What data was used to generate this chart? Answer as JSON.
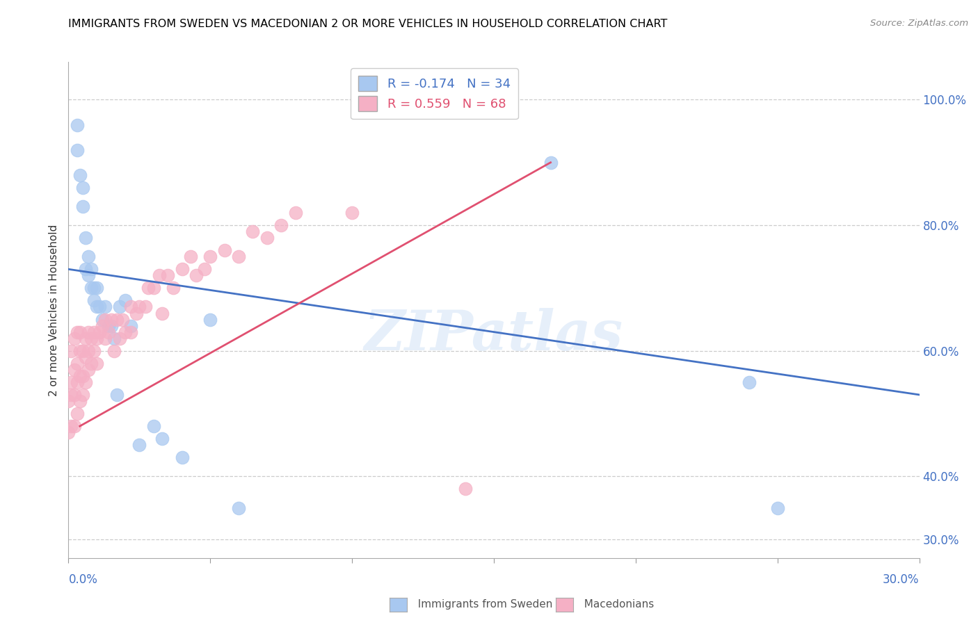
{
  "title": "IMMIGRANTS FROM SWEDEN VS MACEDONIAN 2 OR MORE VEHICLES IN HOUSEHOLD CORRELATION CHART",
  "source": "Source: ZipAtlas.com",
  "ylabel": "2 or more Vehicles in Household",
  "yaxis_labels": [
    "100.0%",
    "80.0%",
    "60.0%",
    "40.0%",
    "30.0%"
  ],
  "yaxis_values": [
    1.0,
    0.8,
    0.6,
    0.4,
    0.3
  ],
  "xlim": [
    0.0,
    0.3
  ],
  "ylim": [
    0.27,
    1.06
  ],
  "legend_sweden": "R = -0.174   N = 34",
  "legend_macedonian": "R = 0.559   N = 68",
  "color_sweden": "#a8c8f0",
  "color_macedonian": "#f5b0c5",
  "line_color_sweden": "#4472c4",
  "line_color_macedonian": "#e05070",
  "watermark": "ZIPatlas",
  "sweden_x": [
    0.003,
    0.003,
    0.004,
    0.005,
    0.005,
    0.006,
    0.006,
    0.007,
    0.007,
    0.008,
    0.008,
    0.009,
    0.009,
    0.01,
    0.01,
    0.011,
    0.012,
    0.013,
    0.014,
    0.015,
    0.016,
    0.017,
    0.018,
    0.02,
    0.022,
    0.025,
    0.03,
    0.033,
    0.04,
    0.05,
    0.06,
    0.17,
    0.24,
    0.25
  ],
  "sweden_y": [
    0.92,
    0.96,
    0.88,
    0.83,
    0.86,
    0.73,
    0.78,
    0.72,
    0.75,
    0.7,
    0.73,
    0.7,
    0.68,
    0.7,
    0.67,
    0.67,
    0.65,
    0.67,
    0.64,
    0.64,
    0.62,
    0.53,
    0.67,
    0.68,
    0.64,
    0.45,
    0.48,
    0.46,
    0.43,
    0.65,
    0.35,
    0.9,
    0.55,
    0.35
  ],
  "macedonian_x": [
    0.0,
    0.0,
    0.001,
    0.001,
    0.001,
    0.001,
    0.002,
    0.002,
    0.002,
    0.002,
    0.003,
    0.003,
    0.003,
    0.003,
    0.004,
    0.004,
    0.004,
    0.004,
    0.005,
    0.005,
    0.005,
    0.006,
    0.006,
    0.006,
    0.007,
    0.007,
    0.007,
    0.008,
    0.008,
    0.009,
    0.009,
    0.01,
    0.01,
    0.011,
    0.012,
    0.013,
    0.013,
    0.014,
    0.015,
    0.016,
    0.017,
    0.018,
    0.019,
    0.02,
    0.022,
    0.022,
    0.024,
    0.025,
    0.027,
    0.028,
    0.03,
    0.032,
    0.033,
    0.035,
    0.037,
    0.04,
    0.043,
    0.045,
    0.048,
    0.05,
    0.055,
    0.06,
    0.065,
    0.07,
    0.075,
    0.08,
    0.1,
    0.14
  ],
  "macedonian_y": [
    0.47,
    0.52,
    0.48,
    0.53,
    0.55,
    0.6,
    0.48,
    0.53,
    0.57,
    0.62,
    0.5,
    0.55,
    0.58,
    0.63,
    0.52,
    0.56,
    0.6,
    0.63,
    0.53,
    0.56,
    0.6,
    0.55,
    0.59,
    0.62,
    0.57,
    0.6,
    0.63,
    0.58,
    0.62,
    0.6,
    0.63,
    0.58,
    0.62,
    0.63,
    0.64,
    0.62,
    0.65,
    0.63,
    0.65,
    0.6,
    0.65,
    0.62,
    0.65,
    0.63,
    0.63,
    0.67,
    0.66,
    0.67,
    0.67,
    0.7,
    0.7,
    0.72,
    0.66,
    0.72,
    0.7,
    0.73,
    0.75,
    0.72,
    0.73,
    0.75,
    0.76,
    0.75,
    0.79,
    0.78,
    0.8,
    0.82,
    0.82,
    0.38
  ],
  "sweden_line_x": [
    0.0,
    0.3
  ],
  "sweden_line_y": [
    0.73,
    0.53
  ],
  "macedonian_line_x": [
    0.004,
    0.17
  ],
  "macedonian_line_y": [
    0.48,
    0.9
  ]
}
